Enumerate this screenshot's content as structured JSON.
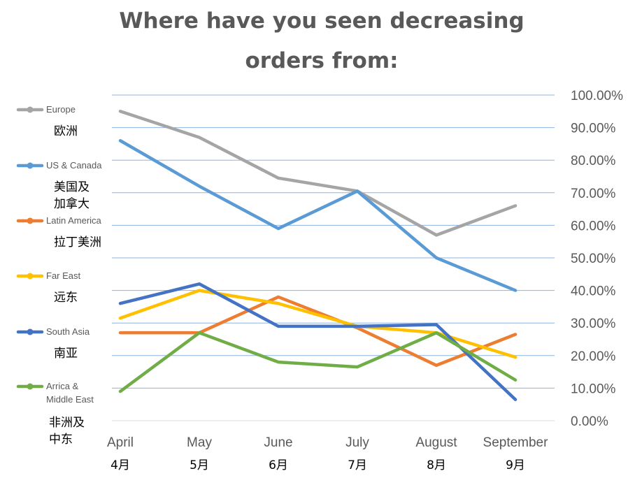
{
  "title_lines": [
    "Where have you seen decreasing",
    "orders from:"
  ],
  "chart_data": {
    "type": "line",
    "title": "Where have you seen decreasing orders from:",
    "categories": [
      "April",
      "May",
      "June",
      "July",
      "August",
      "September"
    ],
    "categories_cn": [
      "4月",
      "5月",
      "6月",
      "7月",
      "8月",
      "9月"
    ],
    "y_ticks": [
      "0.00%",
      "10.00%",
      "20.00%",
      "30.00%",
      "40.00%",
      "50.00%",
      "60.00%",
      "70.00%",
      "80.00%",
      "90.00%",
      "100.00%"
    ],
    "ylim": [
      0,
      100
    ],
    "y_axis_side": "right",
    "grid": true,
    "legend_position": "left",
    "series": [
      {
        "name": "Europe",
        "name_cn": [
          "欧洲"
        ],
        "color": "#A5A5A5",
        "values": [
          95,
          87,
          74.5,
          70.5,
          57,
          66
        ]
      },
      {
        "name": "US & Canada",
        "name_cn": [
          "美国及",
          "加拿大"
        ],
        "color": "#5B9BD5",
        "values": [
          86,
          72,
          59,
          70.5,
          50,
          40
        ]
      },
      {
        "name": "Latin America",
        "name_cn": [
          "拉丁美洲"
        ],
        "color": "#ED7D31",
        "values": [
          27,
          27,
          38,
          28.5,
          17,
          26.5
        ]
      },
      {
        "name": "Far East",
        "name_cn": [
          "远东"
        ],
        "color": "#FFC000",
        "values": [
          31.5,
          40,
          36,
          29,
          27,
          19.5
        ]
      },
      {
        "name": "South Asia",
        "name_cn": [
          "南亚"
        ],
        "color": "#4472C4",
        "values": [
          36,
          42,
          29,
          29,
          29.5,
          6.5
        ]
      },
      {
        "name": "Arrica & Middle East",
        "name_cn": [
          "非洲及",
          "中东"
        ],
        "color": "#70AD47",
        "values": [
          9,
          27,
          18,
          16.5,
          27,
          12.5
        ]
      }
    ]
  }
}
